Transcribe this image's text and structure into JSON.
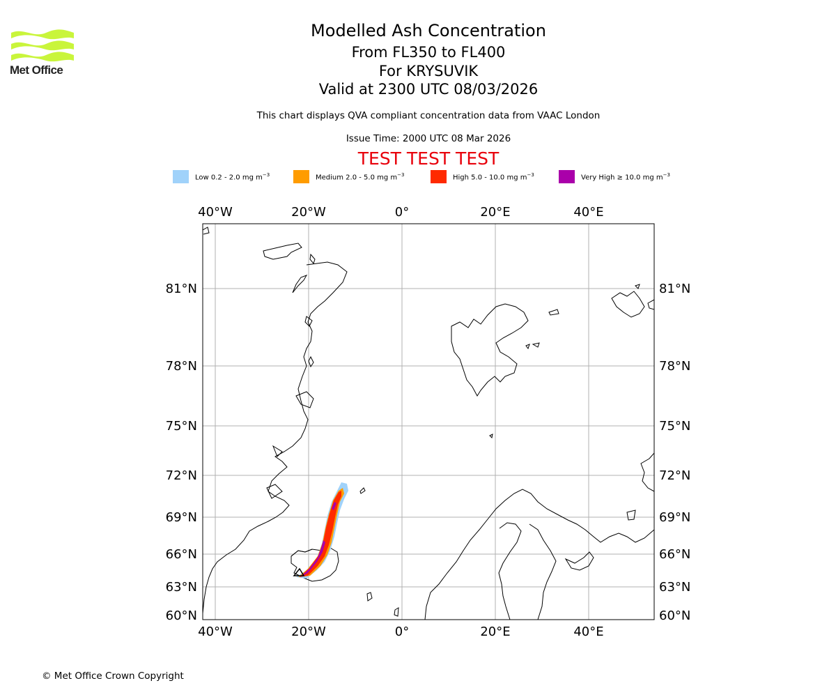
{
  "header": {
    "logo_text": "Met Office",
    "title": "Modelled Ash Concentration",
    "level": "From FL350 to FL400",
    "volcano": "For KRYSUVIK",
    "valid": "Valid at 2300 UTC 08/03/2026",
    "note": "This chart displays QVA compliant concentration data from VAAC London",
    "issue": "Issue Time: 2000 UTC 08 Mar 2026",
    "test_banner": "TEST TEST TEST"
  },
  "legend": [
    {
      "label": "Low 0.2 - 2.0 mg m",
      "color": "#a0d2fa"
    },
    {
      "label": "Medium 2.0 - 5.0 mg m",
      "color": "#ff9c00"
    },
    {
      "label": "High 5.0 - 10.0 mg m",
      "color": "#ff2a00"
    },
    {
      "label": "Very High ≥ 10.0 mg m",
      "color": "#aa00aa"
    }
  ],
  "legend_unit_exp": "−3",
  "map": {
    "lon_labels": [
      "40°W",
      "20°W",
      "0°",
      "20°E",
      "40°E"
    ],
    "lat_labels": [
      "81°N",
      "78°N",
      "75°N",
      "72°N",
      "69°N",
      "66°N",
      "63°N",
      "60°N"
    ],
    "colors": {
      "grid": "#b0b0b0",
      "coast": "#000000",
      "frame": "#000000"
    }
  },
  "footer": "© Met Office Crown Copyright"
}
